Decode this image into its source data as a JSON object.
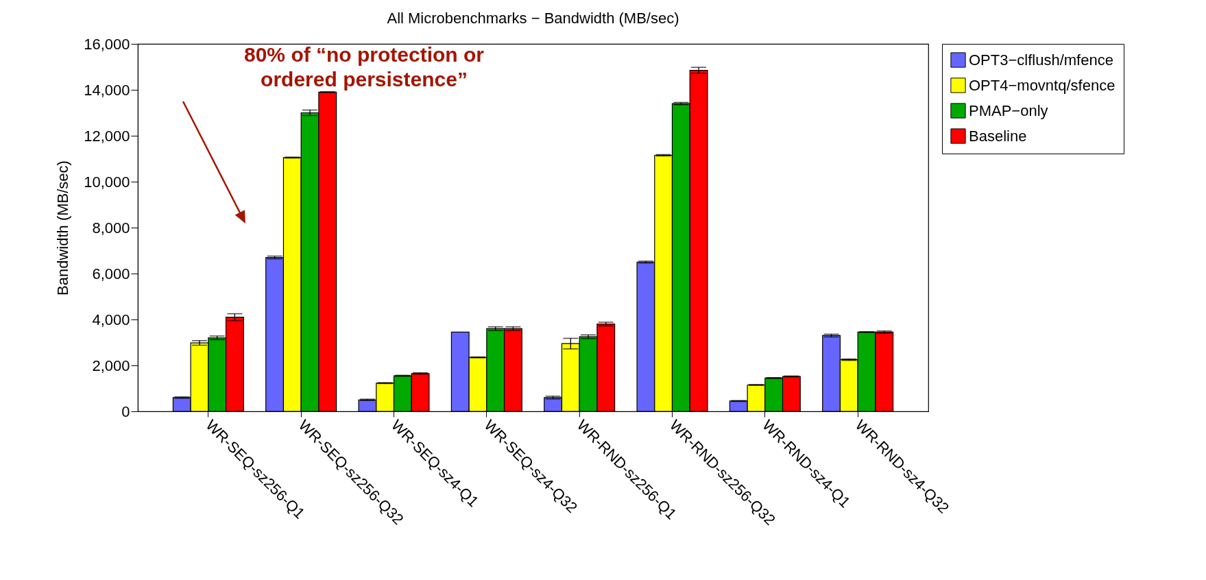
{
  "chart_data": {
    "type": "bar",
    "title": "All Microbenchmarks − Bandwidth (MB/sec)",
    "ylabel": "Bandwidth (MB/sec)",
    "categories": [
      "WR-SEQ-sz256-Q1",
      "WR-SEQ-sz256-Q32",
      "WR-SEQ-sz4-Q1",
      "WR-SEQ-sz4-Q32",
      "WR-RND-sz256-Q1",
      "WR-RND-sz256-Q32",
      "WR-RND-sz4-Q1",
      "WR-RND-sz4-Q32"
    ],
    "series": [
      {
        "name": "OPT3−clflush/mfence",
        "color": "#6666ff",
        "values": [
          600,
          6700,
          500,
          3450,
          600,
          6500,
          450,
          3300
        ],
        "errors": [
          30,
          60,
          30,
          null,
          60,
          40,
          20,
          60
        ]
      },
      {
        "name": "OPT4−movntq/sfence",
        "color": "#ffff00",
        "values": [
          2980,
          11050,
          1230,
          2350,
          2950,
          11150,
          1150,
          2250
        ],
        "errors": [
          100,
          20,
          20,
          20,
          230,
          30,
          20,
          30
        ]
      },
      {
        "name": "PMAP−only",
        "color": "#00aa00",
        "values": [
          3200,
          13000,
          1550,
          3600,
          3250,
          13400,
          1450,
          3450
        ],
        "errors": [
          80,
          120,
          20,
          80,
          80,
          50,
          20,
          20
        ]
      },
      {
        "name": "Baseline",
        "color": "#ff0000",
        "values": [
          4100,
          13900,
          1650,
          3600,
          3800,
          14850,
          1520,
          3450
        ],
        "errors": [
          150,
          20,
          30,
          80,
          80,
          130,
          20,
          50
        ]
      }
    ],
    "ylim": [
      0,
      16000
    ],
    "yticks": [
      {
        "value": 0,
        "label": "0"
      },
      {
        "value": 2000,
        "label": "2,000"
      },
      {
        "value": 4000,
        "label": "4,000"
      },
      {
        "value": 6000,
        "label": "6,000"
      },
      {
        "value": 8000,
        "label": "8,000"
      },
      {
        "value": 10000,
        "label": "10,000"
      },
      {
        "value": 12000,
        "label": "12,000"
      },
      {
        "value": 14000,
        "label": "14,000"
      },
      {
        "value": 16000,
        "label": "16,000"
      }
    ],
    "legend": "right",
    "annotations": [
      "80% of “no protection or\nordered persistence”"
    ]
  }
}
